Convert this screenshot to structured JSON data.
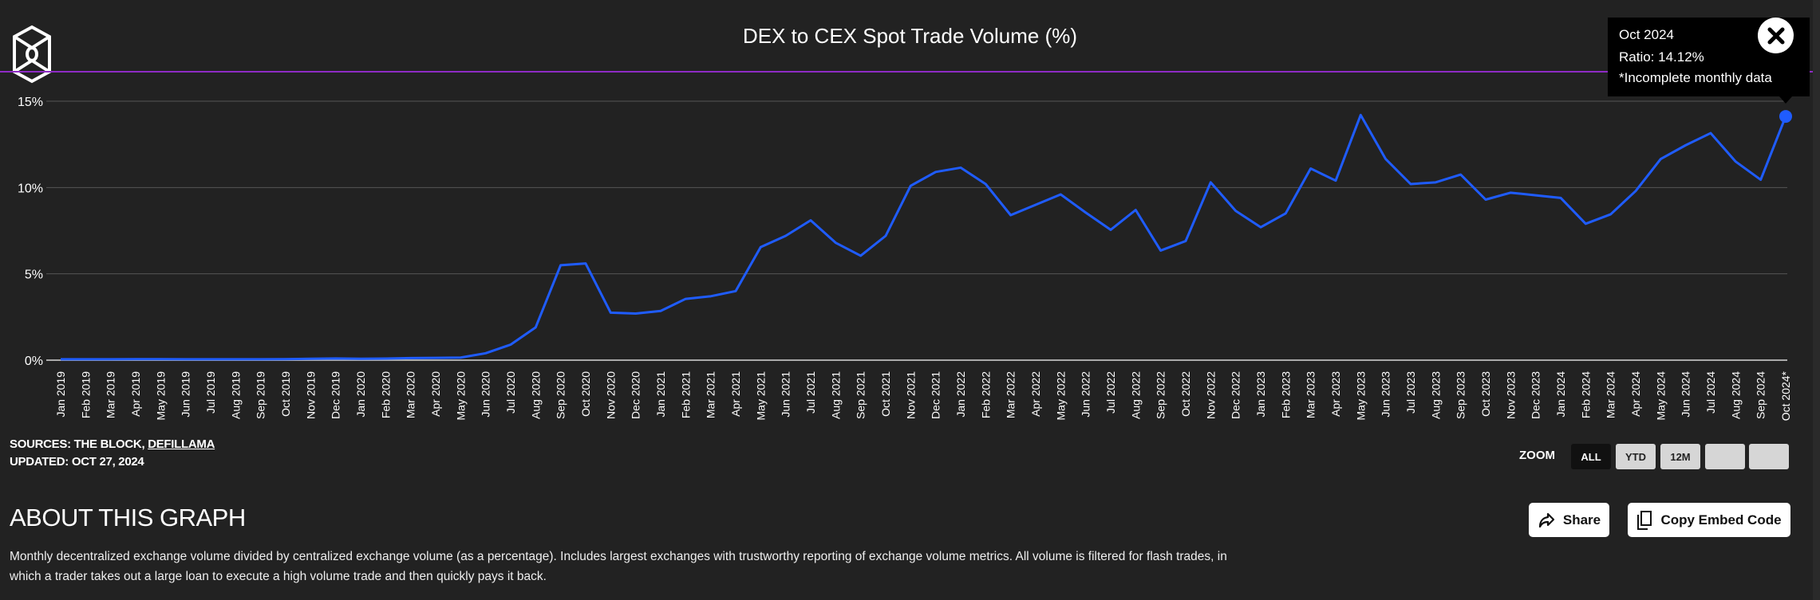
{
  "header": {
    "title": "DEX to CEX Spot Trade Volume (%)",
    "logo_icon": "the-block-cube-logo"
  },
  "colors": {
    "background": "#222222",
    "line": "#1f5cff",
    "divider": "#8e2bc4",
    "grid": "#555555"
  },
  "chart_data": {
    "type": "line",
    "title": "DEX to CEX Spot Trade Volume (%)",
    "xlabel": "",
    "ylabel": "",
    "ylim": [
      0,
      15
    ],
    "yticks": [
      "0%",
      "5%",
      "10%",
      "15%"
    ],
    "ytick_values": [
      0,
      5,
      10,
      15
    ],
    "grid": true,
    "categories": [
      "Jan 2019",
      "Feb 2019",
      "Mar 2019",
      "Apr 2019",
      "May 2019",
      "Jun 2019",
      "Jul 2019",
      "Aug 2019",
      "Sep 2019",
      "Oct 2019",
      "Nov 2019",
      "Dec 2019",
      "Jan 2020",
      "Feb 2020",
      "Mar 2020",
      "Apr 2020",
      "May 2020",
      "Jun 2020",
      "Jul 2020",
      "Aug 2020",
      "Sep 2020",
      "Oct 2020",
      "Nov 2020",
      "Dec 2020",
      "Jan 2021",
      "Feb 2021",
      "Mar 2021",
      "Apr 2021",
      "May 2021",
      "Jun 2021",
      "Jul 2021",
      "Aug 2021",
      "Sep 2021",
      "Oct 2021",
      "Nov 2021",
      "Dec 2021",
      "Jan 2022",
      "Feb 2022",
      "Mar 2022",
      "Apr 2022",
      "May 2022",
      "Jun 2022",
      "Jul 2022",
      "Aug 2022",
      "Sep 2022",
      "Oct 2022",
      "Nov 2022",
      "Dec 2022",
      "Jan 2023",
      "Feb 2023",
      "Mar 2023",
      "Apr 2023",
      "May 2023",
      "Jun 2023",
      "Jul 2023",
      "Aug 2023",
      "Sep 2023",
      "Oct 2023",
      "Nov 2023",
      "Dec 2023",
      "Jan 2024",
      "Feb 2024",
      "Mar 2024",
      "Apr 2024",
      "May 2024",
      "Jun 2024",
      "Jul 2024",
      "Aug 2024",
      "Sep 2024",
      "Oct 2024*"
    ],
    "series": [
      {
        "values": [
          0.05,
          0.05,
          0.05,
          0.06,
          0.06,
          0.05,
          0.05,
          0.05,
          0.05,
          0.06,
          0.08,
          0.1,
          0.08,
          0.09,
          0.12,
          0.13,
          0.15,
          0.4,
          0.9,
          1.9,
          5.5,
          5.6,
          2.75,
          2.7,
          2.85,
          3.55,
          3.7,
          4.0,
          6.55,
          7.2,
          8.1,
          6.8,
          6.05,
          7.2,
          10.1,
          10.9,
          11.15,
          10.2,
          8.4,
          9.0,
          9.6,
          8.55,
          7.55,
          8.7,
          6.35,
          6.9,
          10.3,
          8.65,
          7.7,
          8.5,
          11.1,
          10.4,
          14.2,
          11.65,
          10.2,
          10.3,
          10.75,
          9.3,
          9.7,
          9.55,
          9.4,
          7.9,
          8.45,
          9.8,
          11.65,
          12.45,
          13.15,
          11.5,
          10.45,
          14.12
        ]
      }
    ],
    "highlighted_point": "Oct 2024*"
  },
  "tooltip": {
    "date": "Oct 2024",
    "ratio": "Ratio: 14.12%",
    "note": "*Incomplete monthly data",
    "close_icon": "close-x-icon"
  },
  "sources": {
    "prefix": "SOURCES: THE BLOCK, ",
    "link": "DEFILLAMA",
    "updated": "UPDATED: OCT 27, 2024"
  },
  "zoom": {
    "label": "ZOOM",
    "buttons": [
      "ALL",
      "YTD",
      "12M",
      "",
      ""
    ],
    "active": "ALL"
  },
  "about": {
    "heading": "ABOUT THIS GRAPH",
    "description": "Monthly decentralized exchange volume divided by centralized exchange volume (as a percentage). Includes largest exchanges with trustworthy reporting of exchange volume metrics. All volume is filtered for flash trades, in which a trader takes out a large loan to execute a high volume trade and then quickly pays it back."
  },
  "actions": {
    "share": "Share",
    "share_icon": "share-arrow-icon",
    "embed": "Copy Embed Code",
    "embed_icon": "copy-icon"
  }
}
